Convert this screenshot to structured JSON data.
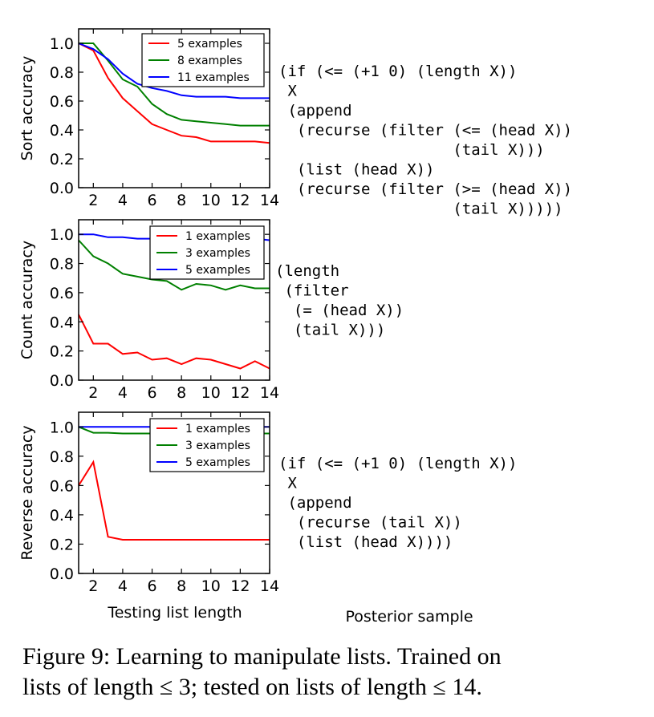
{
  "chart_data": [
    {
      "type": "line",
      "title": "",
      "xlabel": "",
      "ylabel": "Sort accuracy",
      "xlim": [
        1,
        14
      ],
      "ylim": [
        0.0,
        1.1
      ],
      "xticks": [
        "2",
        "4",
        "6",
        "8",
        "10",
        "12",
        "14"
      ],
      "yticks": [
        "0.0",
        "0.2",
        "0.4",
        "0.6",
        "0.8",
        "1.0"
      ],
      "legend_position": "top-right",
      "series": [
        {
          "name": "5 examples",
          "color": "#ff0000",
          "x": [
            1,
            2,
            3,
            4,
            5,
            6,
            7,
            8,
            9,
            10,
            11,
            12,
            13,
            14
          ],
          "y": [
            1.0,
            0.95,
            0.76,
            0.62,
            0.53,
            0.44,
            0.4,
            0.36,
            0.35,
            0.32,
            0.32,
            0.32,
            0.32,
            0.31
          ]
        },
        {
          "name": "8 examples",
          "color": "#008000",
          "x": [
            1,
            2,
            3,
            4,
            5,
            6,
            7,
            8,
            9,
            10,
            11,
            12,
            13,
            14
          ],
          "y": [
            1.0,
            1.0,
            0.88,
            0.75,
            0.7,
            0.58,
            0.51,
            0.47,
            0.46,
            0.45,
            0.44,
            0.43,
            0.43,
            0.43
          ]
        },
        {
          "name": "11 examples",
          "color": "#0000ff",
          "x": [
            1,
            2,
            3,
            4,
            5,
            6,
            7,
            8,
            9,
            10,
            11,
            12,
            13,
            14
          ],
          "y": [
            1.0,
            0.96,
            0.89,
            0.79,
            0.72,
            0.69,
            0.67,
            0.64,
            0.63,
            0.63,
            0.63,
            0.62,
            0.62,
            0.62
          ]
        }
      ],
      "code": [
        "(if (<= (+1 0) (length X))",
        " X",
        " (append",
        "  (recurse (filter (<= (head X))",
        "                   (tail X)))",
        "  (list (head X))",
        "  (recurse (filter (>= (head X))",
        "                   (tail X)))))"
      ]
    },
    {
      "type": "line",
      "title": "",
      "xlabel": "",
      "ylabel": "Count accuracy",
      "xlim": [
        1,
        14
      ],
      "ylim": [
        0.0,
        1.1
      ],
      "xticks": [
        "2",
        "4",
        "6",
        "8",
        "10",
        "12",
        "14"
      ],
      "yticks": [
        "0.0",
        "0.2",
        "0.4",
        "0.6",
        "0.8",
        "1.0"
      ],
      "legend_position": "top-right",
      "series": [
        {
          "name": "1 examples",
          "color": "#ff0000",
          "x": [
            1,
            2,
            3,
            4,
            5,
            6,
            7,
            8,
            9,
            10,
            11,
            12,
            13,
            14
          ],
          "y": [
            0.45,
            0.25,
            0.25,
            0.18,
            0.19,
            0.14,
            0.15,
            0.11,
            0.15,
            0.14,
            0.11,
            0.08,
            0.13,
            0.08
          ]
        },
        {
          "name": "3 examples",
          "color": "#008000",
          "x": [
            1,
            2,
            3,
            4,
            5,
            6,
            7,
            8,
            9,
            10,
            11,
            12,
            13,
            14
          ],
          "y": [
            0.96,
            0.85,
            0.8,
            0.73,
            0.71,
            0.69,
            0.68,
            0.62,
            0.66,
            0.65,
            0.62,
            0.65,
            0.63,
            0.63
          ]
        },
        {
          "name": "5 examples",
          "color": "#0000ff",
          "x": [
            1,
            2,
            3,
            4,
            5,
            6,
            7,
            8,
            9,
            10,
            11,
            12,
            13,
            14
          ],
          "y": [
            1.0,
            1.0,
            0.98,
            0.98,
            0.97,
            0.97,
            0.97,
            0.97,
            0.97,
            0.97,
            0.97,
            0.97,
            0.97,
            0.96
          ]
        }
      ],
      "code": [
        "(length",
        " (filter",
        "  (= (head X))",
        "  (tail X)))"
      ]
    },
    {
      "type": "line",
      "title": "",
      "xlabel": "Testing list length",
      "ylabel": "Reverse accuracy",
      "xlim": [
        1,
        14
      ],
      "ylim": [
        0.0,
        1.1
      ],
      "xticks": [
        "2",
        "4",
        "6",
        "8",
        "10",
        "12",
        "14"
      ],
      "yticks": [
        "0.0",
        "0.2",
        "0.4",
        "0.6",
        "0.8",
        "1.0"
      ],
      "legend_position": "top-right",
      "series": [
        {
          "name": "1 examples",
          "color": "#ff0000",
          "x": [
            1,
            2,
            3,
            4,
            5,
            6,
            7,
            8,
            9,
            10,
            11,
            12,
            13,
            14
          ],
          "y": [
            0.6,
            0.76,
            0.25,
            0.23,
            0.23,
            0.23,
            0.23,
            0.23,
            0.23,
            0.23,
            0.23,
            0.23,
            0.23,
            0.23
          ]
        },
        {
          "name": "3 examples",
          "color": "#008000",
          "x": [
            1,
            2,
            3,
            4,
            5,
            6,
            7,
            8,
            9,
            10,
            11,
            12,
            13,
            14
          ],
          "y": [
            1.0,
            0.96,
            0.96,
            0.955,
            0.955,
            0.955,
            0.955,
            0.955,
            0.955,
            0.955,
            0.955,
            0.955,
            0.955,
            0.955
          ]
        },
        {
          "name": "5 examples",
          "color": "#0000ff",
          "x": [
            1,
            2,
            3,
            4,
            5,
            6,
            7,
            8,
            9,
            10,
            11,
            12,
            13,
            14
          ],
          "y": [
            1.0,
            1.0,
            1.0,
            1.0,
            1.0,
            1.0,
            1.0,
            1.0,
            1.0,
            1.0,
            1.0,
            1.0,
            1.0,
            1.0
          ]
        }
      ],
      "code": [
        "(if (<= (+1 0) (length X))",
        " X",
        " (append",
        "  (recurse (tail X))",
        "  (list (head X))))"
      ]
    }
  ],
  "posterior_label": "Posterior sample",
  "caption": {
    "line1": "Figure 9: Learning to manipulate lists. Trained on",
    "line2": "lists of length ≤ 3; tested on lists of length ≤ 14."
  }
}
